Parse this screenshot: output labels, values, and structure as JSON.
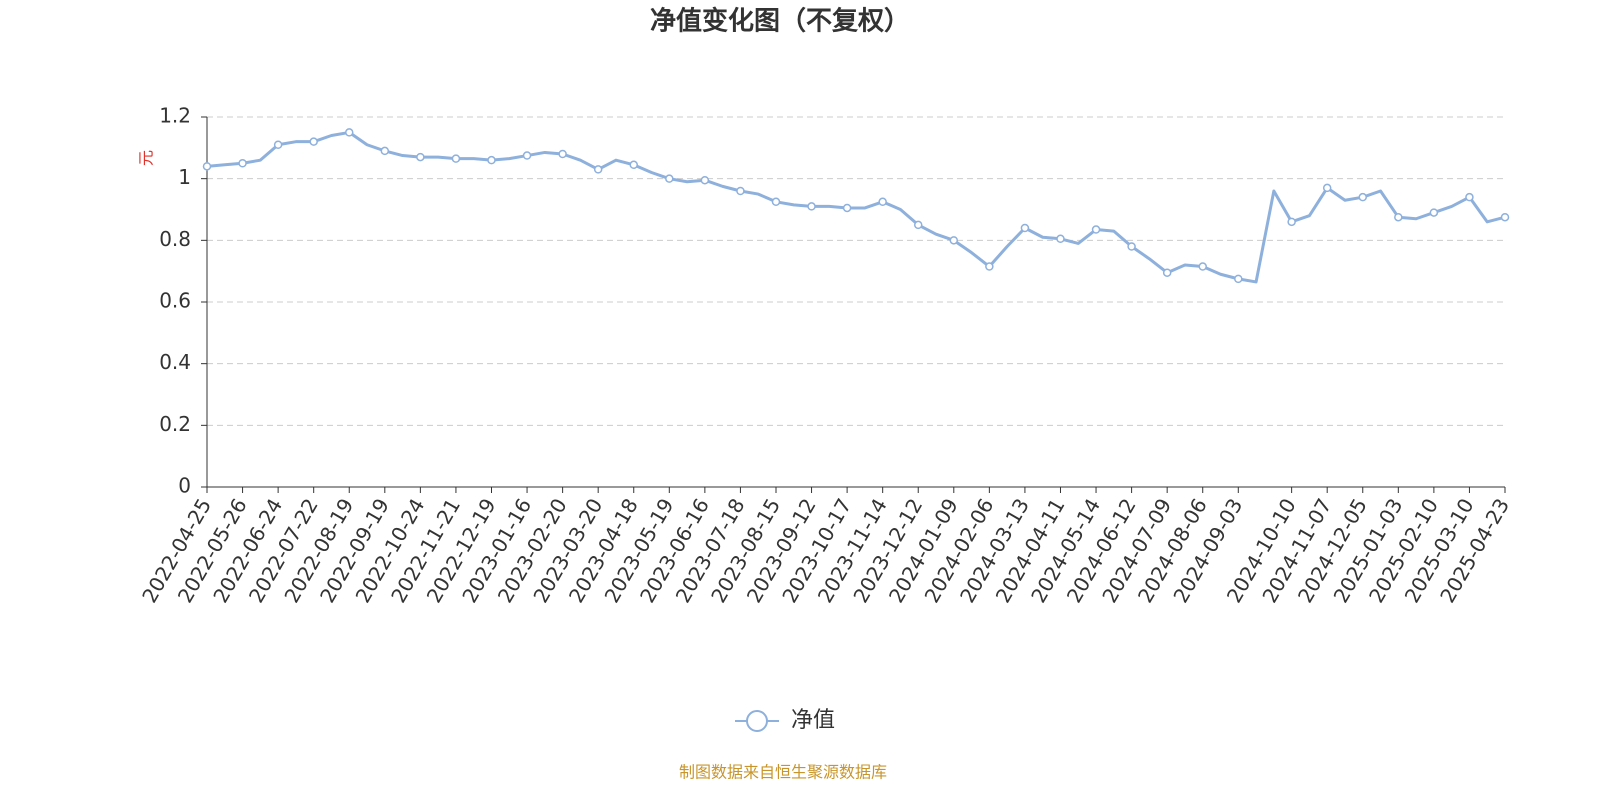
{
  "chart_data": {
    "type": "line",
    "title": "净值变化图（不复权）",
    "y_label": "元",
    "source": "制图数据来自恒生聚源数据库",
    "x": [
      "2022-04-25",
      null,
      "2022-05-26",
      null,
      "2022-06-24",
      null,
      "2022-07-22",
      null,
      "2022-08-19",
      null,
      "2022-09-19",
      null,
      "2022-10-24",
      null,
      "2022-11-21",
      null,
      "2022-12-19",
      null,
      "2023-01-16",
      null,
      "2023-02-20",
      null,
      "2023-03-20",
      null,
      "2023-04-18",
      null,
      "2023-05-19",
      null,
      "2023-06-16",
      null,
      "2023-07-18",
      null,
      "2023-08-15",
      null,
      "2023-09-12",
      null,
      "2023-10-17",
      null,
      "2023-11-14",
      null,
      "2023-12-12",
      null,
      "2024-01-09",
      null,
      "2024-02-06",
      null,
      "2024-03-13",
      null,
      "2024-04-11",
      null,
      "2024-05-14",
      null,
      "2024-06-12",
      null,
      "2024-07-09",
      null,
      "2024-08-06",
      null,
      "2024-09-03",
      null,
      null,
      "2024-10-10",
      null,
      "2024-11-07",
      null,
      "2024-12-05",
      null,
      "2025-01-03",
      null,
      "2025-02-10",
      null,
      "2025-03-10",
      null,
      "2025-04-23"
    ],
    "series": [
      {
        "name": "净值",
        "color": "#8eb0dc",
        "values": [
          1.04,
          1.045,
          1.05,
          1.06,
          1.11,
          1.12,
          1.12,
          1.14,
          1.15,
          1.11,
          1.09,
          1.075,
          1.07,
          1.07,
          1.065,
          1.065,
          1.06,
          1.065,
          1.075,
          1.085,
          1.08,
          1.06,
          1.03,
          1.06,
          1.045,
          1.02,
          1.0,
          0.99,
          0.995,
          0.975,
          0.96,
          0.95,
          0.925,
          0.915,
          0.91,
          0.91,
          0.905,
          0.905,
          0.925,
          0.9,
          0.85,
          0.82,
          0.8,
          0.76,
          0.715,
          0.78,
          0.84,
          0.81,
          0.805,
          0.79,
          0.835,
          0.83,
          0.78,
          0.74,
          0.695,
          0.72,
          0.715,
          0.69,
          0.675,
          0.665,
          0.96,
          0.86,
          0.88,
          0.97,
          0.93,
          0.94,
          0.96,
          0.875,
          0.87,
          0.89,
          0.91,
          0.94,
          0.86,
          0.875
        ]
      }
    ],
    "ylim": [
      0,
      1.2
    ],
    "yticks": [
      0,
      0.2,
      0.4,
      0.6,
      0.8,
      1,
      1.2
    ],
    "grid": true
  }
}
